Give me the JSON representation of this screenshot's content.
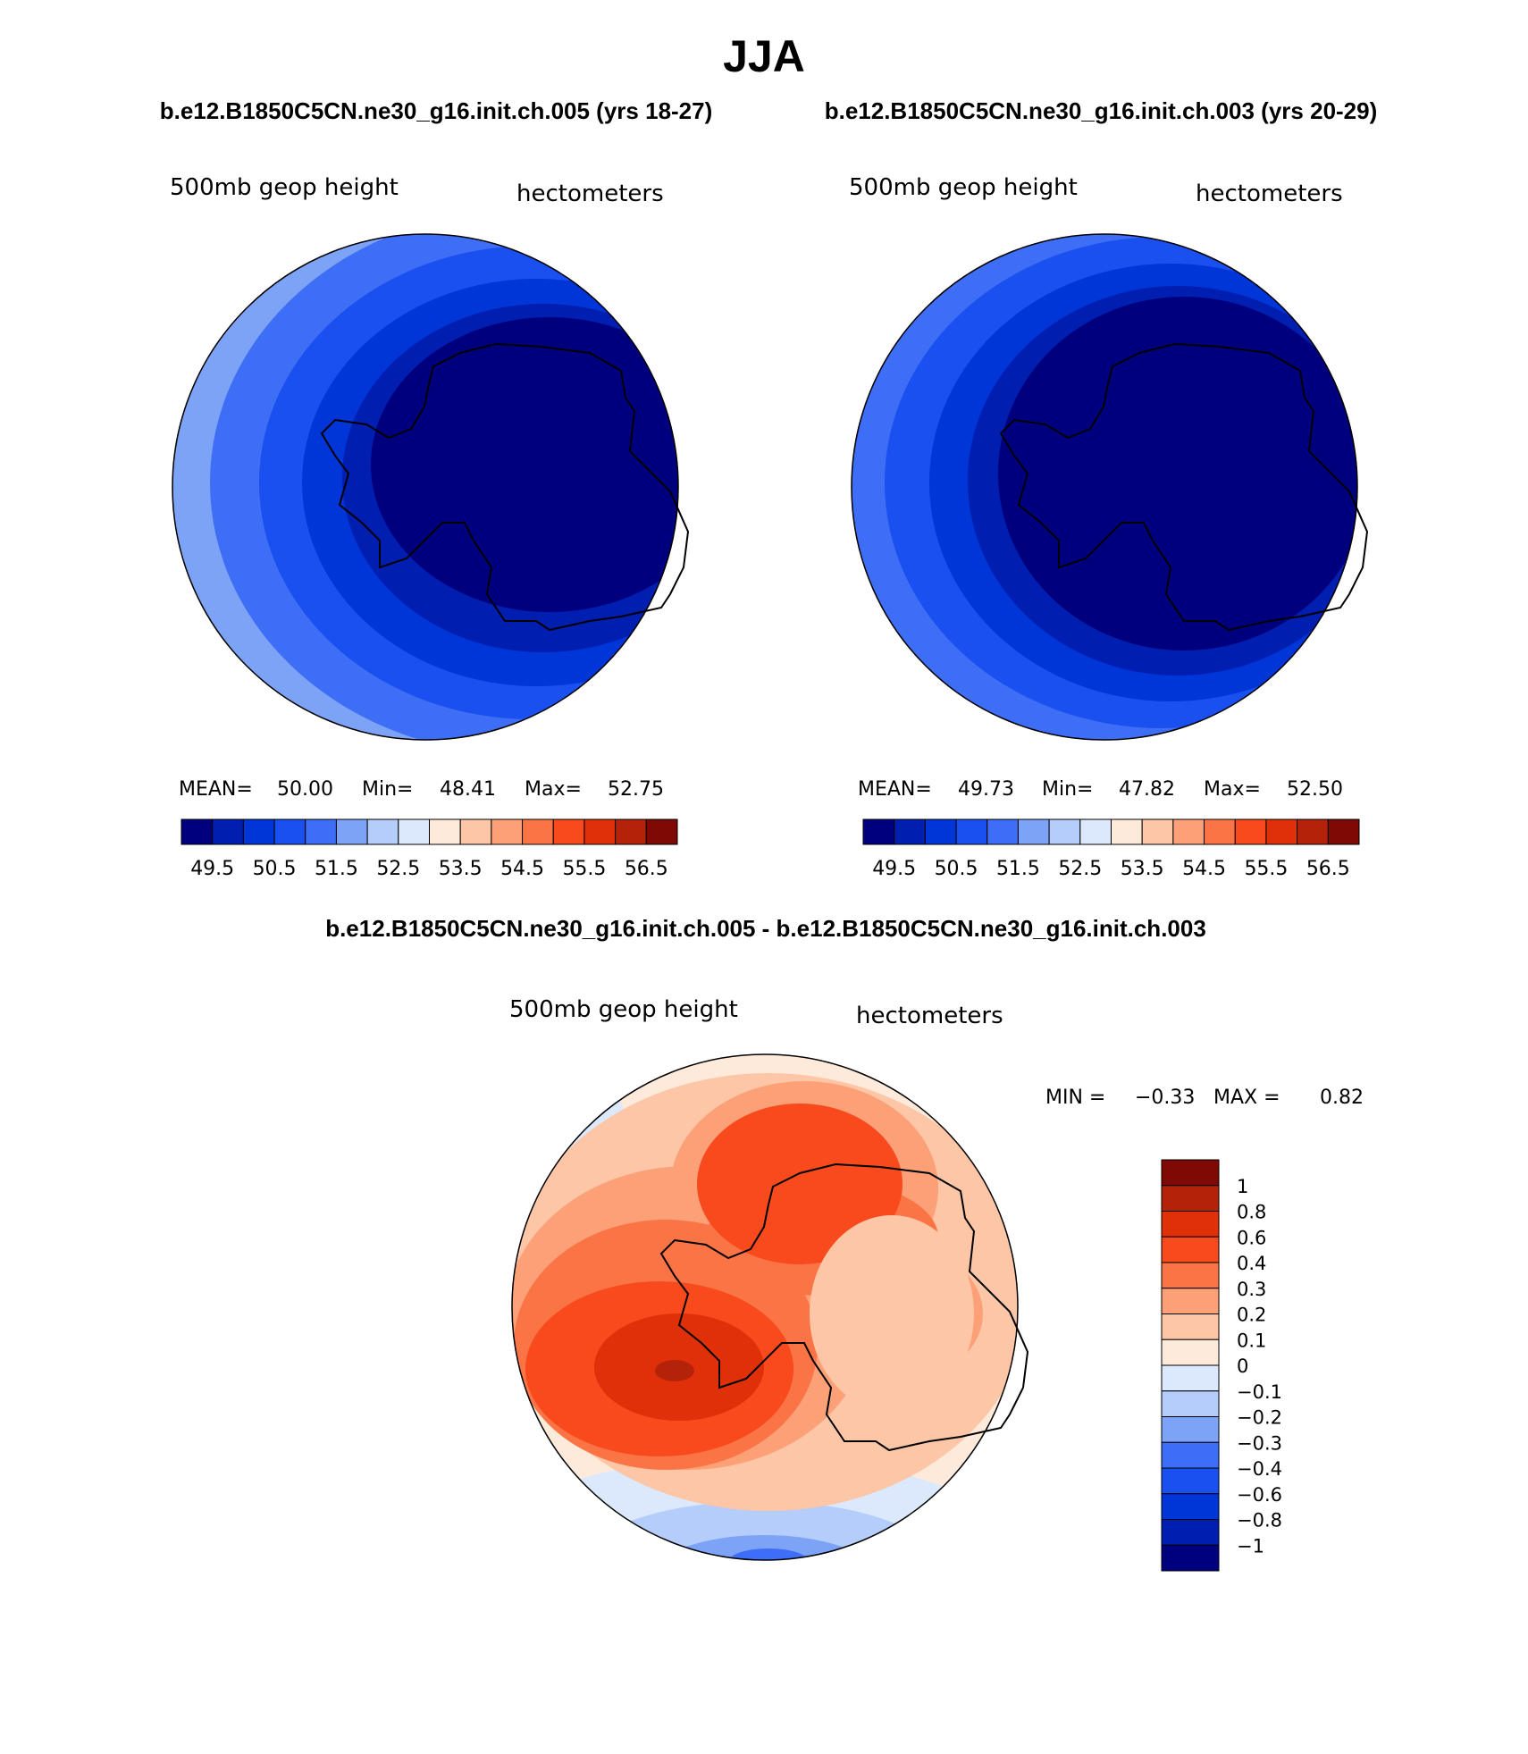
{
  "page_title": "JJA",
  "header": {
    "left_title": "b.e12.B1850C5CN.ne30_g16.init.ch.005 (yrs 18-27)",
    "right_title": "b.e12.B1850C5CN.ne30_g16.init.ch.003 (yrs 20-29)",
    "diff_title": "b.e12.B1850C5CN.ne30_g16.init.ch.005 - b.e12.B1850C5CN.ne30_g16.init.ch.003"
  },
  "colors": {
    "abs_scale": [
      "#00007f",
      "#001fb0",
      "#0035d8",
      "#1a4ff0",
      "#3d6ef5",
      "#7da3f7",
      "#b5cdfa",
      "#dce9fc",
      "#feeadb",
      "#fdc6a6",
      "#fca078",
      "#fb7445",
      "#f84a1c",
      "#e0300a",
      "#b4220a",
      "#7f0a05"
    ],
    "diff_scale": [
      "#00007f",
      "#001fb0",
      "#0035d8",
      "#1a4ff0",
      "#3d6ef5",
      "#7da3f7",
      "#b5cdfa",
      "#dce9fc",
      "#feeadb",
      "#fdc6a6",
      "#fca078",
      "#fb7445",
      "#f84a1c",
      "#e0300a",
      "#b4220a",
      "#7f0a05"
    ],
    "land_outline": "#000000"
  },
  "chart_data": [
    {
      "type": "heatmap",
      "projection": "south-polar-stereographic",
      "title_left": "500mb geop height",
      "title_right": "hectometers",
      "stats": {
        "mean_label": "MEAN=",
        "mean": "50.00",
        "min_label": "Min=",
        "min": "48.41",
        "max_label": "Max=",
        "max": "52.75"
      },
      "levels": [
        49.5,
        50,
        50.5,
        51,
        51.5,
        52,
        52.5,
        53,
        53.5,
        54,
        54.5,
        55,
        55.5,
        56,
        56.5
      ],
      "tick_labels": [
        "49.5",
        "50.5",
        "51.5",
        "52.5",
        "53.5",
        "54.5",
        "55.5",
        "56.5"
      ],
      "colorbar": "horizontal"
    },
    {
      "type": "heatmap",
      "projection": "south-polar-stereographic",
      "title_left": "500mb geop height",
      "title_right": "hectometers",
      "stats": {
        "mean_label": "MEAN=",
        "mean": "49.73",
        "min_label": "Min=",
        "min": "47.82",
        "max_label": "Max=",
        "max": "52.50"
      },
      "levels": [
        49.5,
        50,
        50.5,
        51,
        51.5,
        52,
        52.5,
        53,
        53.5,
        54,
        54.5,
        55,
        55.5,
        56,
        56.5
      ],
      "tick_labels": [
        "49.5",
        "50.5",
        "51.5",
        "52.5",
        "53.5",
        "54.5",
        "55.5",
        "56.5"
      ],
      "colorbar": "horizontal"
    },
    {
      "type": "heatmap",
      "projection": "south-polar-stereographic",
      "title_left": "500mb geop height",
      "title_right": "hectometers",
      "stats": {
        "min_label": "MIN =",
        "min": "−0.33",
        "max_label": "MAX =",
        "max": "0.82"
      },
      "levels": [
        -1,
        -0.8,
        -0.6,
        -0.4,
        -0.3,
        -0.2,
        -0.1,
        0,
        0.1,
        0.2,
        0.3,
        0.4,
        0.6,
        0.8,
        1
      ],
      "tick_labels": [
        "1",
        "0.8",
        "0.6",
        "0.4",
        "0.3",
        "0.2",
        "0.1",
        "0",
        "−0.1",
        "−0.2",
        "−0.3",
        "−0.4",
        "−0.6",
        "−0.8",
        "−1"
      ],
      "colorbar": "vertical"
    }
  ]
}
